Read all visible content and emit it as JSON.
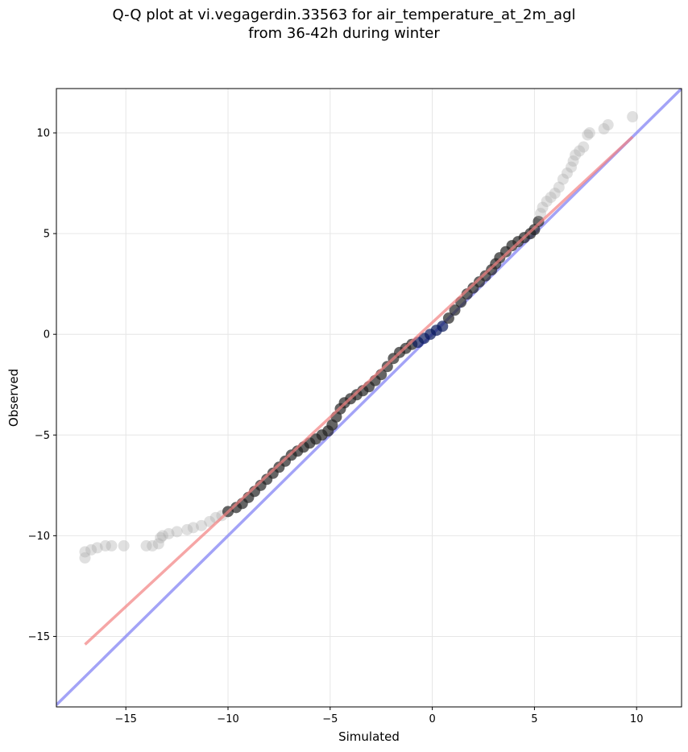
{
  "chart_data": {
    "type": "scatter",
    "title_lines": [
      "Q-Q plot at vi.vegagerdin.33563 for air_temperature_at_2m_agl",
      "from 36-42h during winter"
    ],
    "xlabel": "Simulated",
    "ylabel": "Observed",
    "xlim": [
      -18.4,
      12.2
    ],
    "ylim": [
      -18.5,
      12.2
    ],
    "xticks": [
      -15,
      -10,
      -5,
      0,
      5,
      10
    ],
    "yticks": [
      -15,
      -10,
      -5,
      0,
      5,
      10
    ],
    "xtick_labels": [
      "−15",
      "−10",
      "−5",
      "0",
      "5",
      "10"
    ],
    "ytick_labels": [
      "−15",
      "−10",
      "−5",
      "0",
      "5",
      "10"
    ],
    "grid": true,
    "colors": {
      "points_dense": "#222222",
      "points_tail": "#a6a6a6",
      "fit_line": "#f28080",
      "identity_line": "#8c8cf5",
      "center_points": "#0a1a5c"
    },
    "identity_line": {
      "x": [
        -18.4,
        12.2
      ],
      "y": [
        -18.4,
        12.2
      ]
    },
    "fit_line": {
      "x": [
        -17.0,
        9.8
      ],
      "y": [
        -15.4,
        9.8
      ]
    },
    "points": [
      [
        -17.0,
        -11.1
      ],
      [
        -17.0,
        -10.8
      ],
      [
        -16.7,
        -10.7
      ],
      [
        -16.4,
        -10.6
      ],
      [
        -16.0,
        -10.5
      ],
      [
        -15.7,
        -10.5
      ],
      [
        -15.1,
        -10.5
      ],
      [
        -14.0,
        -10.5
      ],
      [
        -13.7,
        -10.5
      ],
      [
        -13.4,
        -10.4
      ],
      [
        -13.3,
        -10.1
      ],
      [
        -13.2,
        -10.0
      ],
      [
        -12.9,
        -9.9
      ],
      [
        -12.5,
        -9.8
      ],
      [
        -12.0,
        -9.7
      ],
      [
        -11.7,
        -9.6
      ],
      [
        -11.3,
        -9.5
      ],
      [
        -10.9,
        -9.3
      ],
      [
        -10.6,
        -9.1
      ],
      [
        -10.3,
        -9.0
      ],
      [
        -10.0,
        -8.8
      ],
      [
        -9.6,
        -8.6
      ],
      [
        -9.3,
        -8.4
      ],
      [
        -9.0,
        -8.1
      ],
      [
        -8.7,
        -7.8
      ],
      [
        -8.4,
        -7.5
      ],
      [
        -8.1,
        -7.2
      ],
      [
        -7.8,
        -6.9
      ],
      [
        -7.5,
        -6.6
      ],
      [
        -7.2,
        -6.3
      ],
      [
        -6.9,
        -6.0
      ],
      [
        -6.6,
        -5.8
      ],
      [
        -6.3,
        -5.6
      ],
      [
        -6.0,
        -5.4
      ],
      [
        -5.7,
        -5.2
      ],
      [
        -5.4,
        -5.0
      ],
      [
        -5.1,
        -4.8
      ],
      [
        -4.9,
        -4.5
      ],
      [
        -4.7,
        -4.1
      ],
      [
        -4.5,
        -3.7
      ],
      [
        -4.3,
        -3.4
      ],
      [
        -4.0,
        -3.2
      ],
      [
        -3.7,
        -3.0
      ],
      [
        -3.4,
        -2.8
      ],
      [
        -3.1,
        -2.6
      ],
      [
        -2.8,
        -2.3
      ],
      [
        -2.5,
        -2.0
      ],
      [
        -2.2,
        -1.6
      ],
      [
        -1.9,
        -1.2
      ],
      [
        -1.6,
        -0.9
      ],
      [
        -1.3,
        -0.7
      ],
      [
        -1.0,
        -0.5
      ],
      [
        -0.7,
        -0.4
      ],
      [
        -0.4,
        -0.2
      ],
      [
        -0.1,
        0.0
      ],
      [
        0.2,
        0.2
      ],
      [
        0.5,
        0.4
      ],
      [
        0.8,
        0.8
      ],
      [
        1.1,
        1.2
      ],
      [
        1.4,
        1.6
      ],
      [
        1.7,
        2.0
      ],
      [
        2.0,
        2.3
      ],
      [
        2.3,
        2.6
      ],
      [
        2.6,
        2.9
      ],
      [
        2.9,
        3.2
      ],
      [
        3.1,
        3.5
      ],
      [
        3.3,
        3.8
      ],
      [
        3.6,
        4.1
      ],
      [
        3.9,
        4.4
      ],
      [
        4.2,
        4.6
      ],
      [
        4.5,
        4.8
      ],
      [
        4.8,
        5.0
      ],
      [
        5.0,
        5.2
      ],
      [
        5.2,
        5.6
      ],
      [
        5.3,
        6.0
      ],
      [
        5.4,
        6.3
      ],
      [
        5.6,
        6.6
      ],
      [
        5.8,
        6.8
      ],
      [
        6.0,
        7.0
      ],
      [
        6.2,
        7.3
      ],
      [
        6.4,
        7.7
      ],
      [
        6.6,
        8.0
      ],
      [
        6.8,
        8.3
      ],
      [
        6.9,
        8.6
      ],
      [
        7.0,
        8.9
      ],
      [
        7.2,
        9.1
      ],
      [
        7.4,
        9.3
      ],
      [
        7.6,
        9.9
      ],
      [
        7.7,
        10.0
      ],
      [
        8.4,
        10.2
      ],
      [
        8.6,
        10.4
      ],
      [
        9.8,
        10.8
      ]
    ]
  }
}
